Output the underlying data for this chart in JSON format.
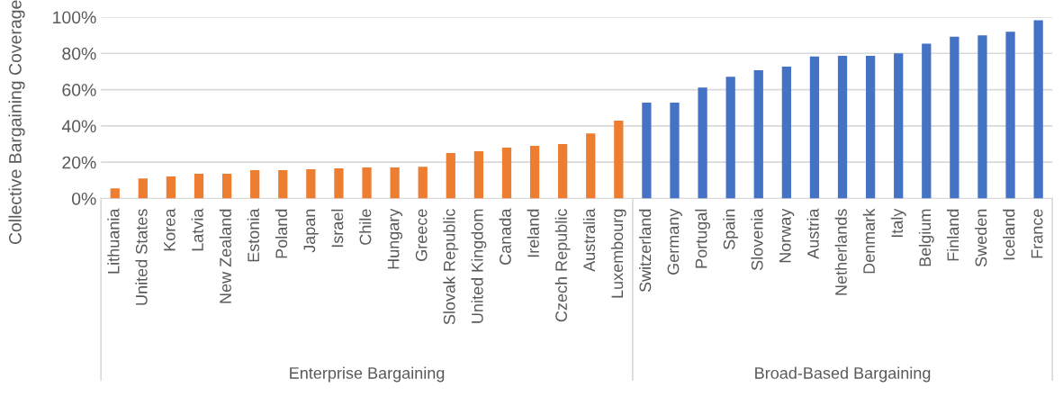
{
  "chart_data": {
    "type": "bar",
    "ylabel": "Collective Bargaining Coverage",
    "categories": [
      "Lithuania",
      "United States",
      "Korea",
      "Latvia",
      "New Zealand",
      "Estonia",
      "Poland",
      "Japan",
      "Israel",
      "Chile",
      "Hungary",
      "Greece",
      "Slovak Republic",
      "United Kingdom",
      "Canada",
      "Ireland",
      "Czech Republic",
      "Australia",
      "Luxembourg",
      "Switzerland",
      "Germany",
      "Portugal",
      "Spain",
      "Slovenia",
      "Norway",
      "Austria",
      "Netherlands",
      "Denmark",
      "Italy",
      "Belgium",
      "Finland",
      "Sweden",
      "Iceland",
      "France"
    ],
    "values": [
      5.6,
      11.1,
      12.1,
      13.6,
      13.6,
      15.6,
      15.6,
      16.1,
      16.6,
      17.1,
      17.1,
      17.5,
      25,
      26,
      28,
      29,
      30,
      35.9,
      42.9,
      52.8,
      52.8,
      61.1,
      67.1,
      70.7,
      72.7,
      78.3,
      78.6,
      78.6,
      80,
      85.3,
      89.2,
      89.9,
      91.9,
      98.2
    ],
    "colors": [
      "#ed7d31",
      "#ed7d31",
      "#ed7d31",
      "#ed7d31",
      "#ed7d31",
      "#ed7d31",
      "#ed7d31",
      "#ed7d31",
      "#ed7d31",
      "#ed7d31",
      "#ed7d31",
      "#ed7d31",
      "#ed7d31",
      "#ed7d31",
      "#ed7d31",
      "#ed7d31",
      "#ed7d31",
      "#ed7d31",
      "#ed7d31",
      "#4472c4",
      "#4472c4",
      "#4472c4",
      "#4472c4",
      "#4472c4",
      "#4472c4",
      "#4472c4",
      "#4472c4",
      "#4472c4",
      "#4472c4",
      "#4472c4",
      "#4472c4",
      "#4472c4",
      "#4472c4",
      "#4472c4"
    ],
    "annotations": [
      "Enterprise Bargaining",
      "Broad-Based Bargaining"
    ],
    "ylim": [
      0,
      100
    ],
    "yticks": [
      {
        "value": 0,
        "label": "0%"
      },
      {
        "value": 20,
        "label": "20%"
      },
      {
        "value": 40,
        "label": "40%"
      },
      {
        "value": 60,
        "label": "60%"
      },
      {
        "value": 80,
        "label": "80%"
      },
      {
        "value": 100,
        "label": "100%"
      }
    ],
    "grid": "y",
    "legend": false
  }
}
